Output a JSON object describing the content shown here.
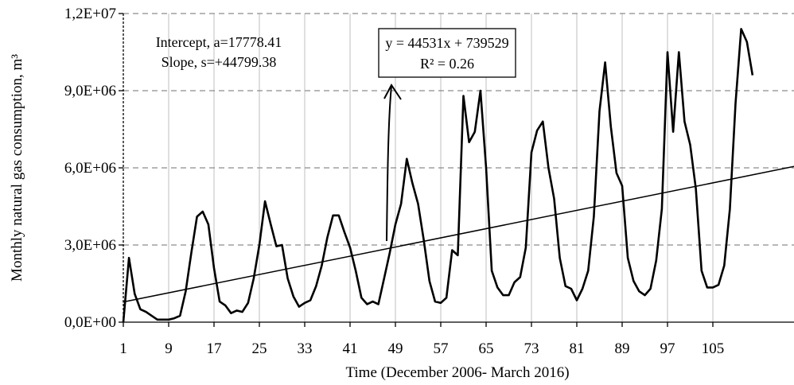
{
  "chart_data": {
    "type": "line",
    "xlabel": "Time (December 2006- March 2016)",
    "ylabel": "Monthly natural gas consumption, m³",
    "xlim": [
      1,
      112
    ],
    "ylim": [
      0,
      12000000
    ],
    "x_ticks": [
      1,
      9,
      17,
      25,
      33,
      41,
      49,
      57,
      65,
      73,
      81,
      89,
      97,
      105
    ],
    "x_tick_labels": [
      "1",
      "9",
      "17",
      "25",
      "33",
      "41",
      "49",
      "57",
      "65",
      "73",
      "81",
      "89",
      "97",
      "105"
    ],
    "y_ticks": [
      0,
      3000000,
      6000000,
      9000000,
      12000000
    ],
    "y_tick_labels": [
      "0,0E+00",
      "3,0E+06",
      "6,0E+06",
      "9,0E+06",
      "1,2E+07"
    ],
    "grid": "vertical solid, horizontal dashed",
    "series": [
      {
        "kind": "consumption",
        "color": "#000000",
        "x": [
          1,
          2,
          3,
          4,
          5,
          6,
          7,
          8,
          9,
          10,
          11,
          12,
          13,
          14,
          15,
          16,
          17,
          18,
          19,
          20,
          21,
          22,
          23,
          24,
          25,
          26,
          27,
          28,
          29,
          30,
          31,
          32,
          33,
          34,
          35,
          36,
          37,
          38,
          39,
          40,
          41,
          42,
          43,
          44,
          45,
          46,
          47,
          48,
          49,
          50,
          51,
          52,
          53,
          54,
          55,
          56,
          57,
          58,
          59,
          60,
          61,
          62,
          63,
          64,
          65,
          66,
          67,
          68,
          69,
          70,
          71,
          72,
          73,
          74,
          75,
          76,
          77,
          78,
          79,
          80,
          81,
          82,
          83,
          84,
          85,
          86,
          87,
          88,
          89,
          90,
          91,
          92,
          93,
          94,
          95,
          96,
          97,
          98,
          99,
          100,
          101,
          102,
          103,
          104,
          105,
          106,
          107,
          108,
          109,
          110,
          111,
          112
        ],
        "y": [
          0,
          2500000,
          1100000,
          500000,
          400000,
          250000,
          100000,
          100000,
          100000,
          150000,
          250000,
          1200000,
          2700000,
          4100000,
          4300000,
          3800000,
          2100000,
          800000,
          650000,
          350000,
          450000,
          400000,
          750000,
          1700000,
          3000000,
          4700000,
          3800000,
          2950000,
          3000000,
          1700000,
          1000000,
          600000,
          750000,
          850000,
          1400000,
          2200000,
          3300000,
          4150000,
          4150000,
          3500000,
          2900000,
          2000000,
          950000,
          700000,
          800000,
          700000,
          1700000,
          2700000,
          3800000,
          4600000,
          6350000,
          5400000,
          4600000,
          3200000,
          1600000,
          800000,
          750000,
          950000,
          2800000,
          2600000,
          8800000,
          7000000,
          7400000,
          9000000,
          6000000,
          2000000,
          1350000,
          1050000,
          1050000,
          1550000,
          1750000,
          2900000,
          6600000,
          7450000,
          7800000,
          6000000,
          4800000,
          2500000,
          1400000,
          1300000,
          850000,
          1300000,
          2000000,
          4100000,
          8200000,
          10100000,
          7600000,
          5800000,
          5300000,
          2500000,
          1600000,
          1200000,
          1050000,
          1300000,
          2400000,
          4400000,
          10500000,
          7400000,
          10500000,
          7800000,
          6900000,
          5200000,
          2000000,
          1350000,
          1350000,
          1450000,
          2200000,
          4400000,
          8500000,
          11400000,
          10900000,
          9600000
        ]
      },
      {
        "kind": "trendline",
        "color": "#000000",
        "equation": "y = 44531x + 739529",
        "slope": 44531,
        "intercept": 739529,
        "r_squared_label": "R² = 0.26"
      }
    ],
    "annotations": {
      "intercept_label": "Intercept, a=17778.41",
      "slope_label": "Slope, s=+44799.38",
      "equation_label": "y = 44531x + 739529",
      "r2_label": "R² = 0.26"
    }
  }
}
